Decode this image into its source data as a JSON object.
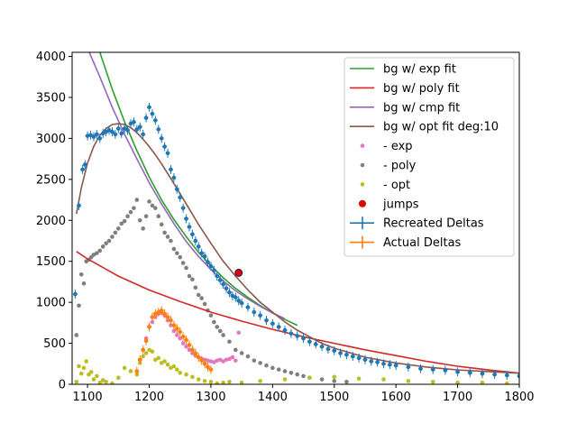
{
  "chart_data": {
    "type": "scatter",
    "title": "",
    "xlabel": "",
    "ylabel": "",
    "xlim": [
      1075,
      1800
    ],
    "ylim": [
      0,
      4050
    ],
    "x_ticks": [
      1100,
      1200,
      1300,
      1400,
      1500,
      1600,
      1700,
      1800
    ],
    "y_ticks": [
      0,
      500,
      1000,
      1500,
      2000,
      2500,
      3000,
      3500,
      4000
    ],
    "grid": false,
    "legend_position": "upper right",
    "colors": {
      "exp_fit": "#2ca02c",
      "poly_fit": "#d62728",
      "cmp_fit": "#9467bd",
      "opt_fit": "#8c564b",
      "exp_resid": "#e377c2",
      "poly_resid": "#7f7f7f",
      "opt_resid": "#bcbd22",
      "jumps": "#e00000",
      "recreated": "#1f77b4",
      "actual": "#ff7f0e"
    },
    "legend": [
      {
        "label": "bg w/ exp fit",
        "kind": "line",
        "key": "exp_fit"
      },
      {
        "label": "bg w/ poly fit",
        "kind": "line",
        "key": "poly_fit"
      },
      {
        "label": "bg w/ cmp fit",
        "kind": "line",
        "key": "cmp_fit"
      },
      {
        "label": "bg w/ opt fit deg:10",
        "kind": "line",
        "key": "opt_fit"
      },
      {
        "label": "- exp",
        "kind": "dot",
        "key": "exp_resid"
      },
      {
        "label": "- poly",
        "kind": "dot",
        "key": "poly_resid"
      },
      {
        "label": "- opt",
        "kind": "dot",
        "key": "opt_resid"
      },
      {
        "label": "jumps",
        "kind": "bigdot",
        "key": "jumps"
      },
      {
        "label": "Recreated Deltas",
        "kind": "errbar",
        "key": "recreated"
      },
      {
        "label": "Actual Deltas",
        "kind": "errbar",
        "key": "actual"
      }
    ],
    "series": [
      {
        "name": "bg w/ exp fit",
        "kind": "line",
        "key": "exp_fit",
        "x": [
          1110,
          1120,
          1140,
          1160,
          1180,
          1200,
          1220,
          1240,
          1260,
          1280,
          1300,
          1320,
          1340,
          1360,
          1380,
          1400,
          1420,
          1440
        ],
        "y": [
          4300,
          4050,
          3600,
          3200,
          2850,
          2530,
          2250,
          2010,
          1800,
          1610,
          1450,
          1300,
          1170,
          1060,
          960,
          870,
          790,
          720
        ]
      },
      {
        "name": "bg w/ poly fit",
        "kind": "line",
        "key": "poly_fit",
        "x": [
          1082,
          1100,
          1150,
          1200,
          1250,
          1300,
          1350,
          1400,
          1450,
          1500,
          1550,
          1600,
          1650,
          1700,
          1750,
          1800
        ],
        "y": [
          1620,
          1530,
          1320,
          1150,
          1010,
          880,
          770,
          670,
          580,
          500,
          420,
          350,
          280,
          220,
          175,
          135
        ]
      },
      {
        "name": "bg w/ cmp fit",
        "kind": "line",
        "key": "cmp_fit",
        "x": [
          1100,
          1120,
          1140,
          1160,
          1180,
          1200,
          1220,
          1240,
          1260,
          1280,
          1300,
          1320,
          1340,
          1360,
          1380,
          1400,
          1420
        ],
        "y": [
          4100,
          3750,
          3380,
          3050,
          2750,
          2460,
          2200,
          1960,
          1740,
          1560,
          1400,
          1260,
          1140,
          1040,
          950,
          870,
          800
        ]
      },
      {
        "name": "bg w/ opt fit deg:10",
        "kind": "line",
        "key": "opt_fit",
        "x": [
          1082,
          1090,
          1100,
          1110,
          1120,
          1130,
          1140,
          1150,
          1160,
          1170,
          1180,
          1190,
          1200,
          1210,
          1220,
          1240,
          1260,
          1280,
          1300,
          1320,
          1340,
          1360,
          1380,
          1400,
          1420,
          1440,
          1460,
          1480,
          1500,
          1550,
          1600,
          1650,
          1700,
          1750,
          1800
        ],
        "y": [
          2080,
          2400,
          2700,
          2900,
          3040,
          3120,
          3170,
          3180,
          3170,
          3130,
          3070,
          2990,
          2900,
          2800,
          2690,
          2450,
          2200,
          1950,
          1720,
          1500,
          1320,
          1150,
          1000,
          880,
          760,
          660,
          580,
          500,
          440,
          330,
          260,
          210,
          175,
          155,
          135
        ]
      },
      {
        "name": "- exp",
        "kind": "dots",
        "key": "exp_resid",
        "x": [
          1185,
          1190,
          1195,
          1200,
          1205,
          1210,
          1215,
          1220,
          1225,
          1230,
          1235,
          1240,
          1245,
          1250,
          1255,
          1260,
          1265,
          1270,
          1275,
          1280,
          1285,
          1290,
          1295,
          1300,
          1305,
          1310,
          1315,
          1320,
          1325,
          1330,
          1335,
          1340,
          1345
        ],
        "y": [
          300,
          420,
          560,
          700,
          760,
          820,
          860,
          870,
          840,
          780,
          720,
          650,
          600,
          560,
          500,
          460,
          420,
          380,
          350,
          330,
          310,
          300,
          290,
          280,
          270,
          290,
          300,
          280,
          300,
          310,
          330,
          290,
          630
        ]
      },
      {
        "name": "- poly",
        "kind": "dots",
        "key": "poly_resid",
        "x": [
          1082,
          1086,
          1090,
          1094,
          1098,
          1102,
          1106,
          1110,
          1115,
          1120,
          1125,
          1130,
          1135,
          1140,
          1145,
          1150,
          1155,
          1160,
          1165,
          1170,
          1175,
          1180,
          1185,
          1190,
          1195,
          1200,
          1205,
          1210,
          1215,
          1220,
          1225,
          1230,
          1235,
          1240,
          1245,
          1250,
          1255,
          1260,
          1265,
          1270,
          1275,
          1280,
          1285,
          1290,
          1295,
          1300,
          1305,
          1310,
          1315,
          1320,
          1330,
          1340,
          1350,
          1360,
          1370,
          1380,
          1390,
          1400,
          1410,
          1420,
          1430,
          1440,
          1450,
          1460,
          1480,
          1500,
          1520
        ],
        "y": [
          600,
          960,
          1340,
          1230,
          1500,
          1520,
          1550,
          1580,
          1600,
          1630,
          1680,
          1720,
          1750,
          1800,
          1850,
          1900,
          1960,
          1990,
          2050,
          2100,
          2150,
          2250,
          2000,
          1900,
          2050,
          2230,
          2180,
          2150,
          2050,
          1950,
          1850,
          1800,
          1750,
          1650,
          1600,
          1550,
          1480,
          1420,
          1320,
          1280,
          1180,
          1090,
          1050,
          980,
          900,
          840,
          760,
          700,
          650,
          600,
          520,
          420,
          380,
          340,
          290,
          260,
          230,
          200,
          180,
          160,
          140,
          120,
          100,
          80,
          60,
          40,
          30
        ]
      },
      {
        "name": "- opt",
        "kind": "dots",
        "key": "opt_resid",
        "x": [
          1082,
          1086,
          1090,
          1094,
          1098,
          1102,
          1106,
          1110,
          1115,
          1120,
          1125,
          1130,
          1140,
          1150,
          1160,
          1170,
          1180,
          1185,
          1190,
          1195,
          1200,
          1205,
          1210,
          1215,
          1220,
          1225,
          1230,
          1235,
          1240,
          1245,
          1250,
          1260,
          1270,
          1280,
          1290,
          1300,
          1310,
          1320,
          1330,
          1350,
          1380,
          1420,
          1460,
          1500,
          1540,
          1580,
          1620,
          1660,
          1700,
          1740,
          1780
        ],
        "y": [
          30,
          220,
          130,
          200,
          280,
          120,
          150,
          60,
          100,
          20,
          50,
          30,
          10,
          80,
          200,
          160,
          120,
          260,
          340,
          380,
          420,
          400,
          300,
          320,
          260,
          280,
          240,
          200,
          220,
          180,
          140,
          120,
          90,
          60,
          40,
          30,
          10,
          20,
          30,
          20,
          40,
          60,
          80,
          90,
          70,
          60,
          40,
          30,
          20,
          20,
          10
        ]
      },
      {
        "name": "Actual Deltas",
        "kind": "errdots",
        "key": "actual",
        "x": [
          1180,
          1185,
          1190,
          1195,
          1200,
          1205,
          1210,
          1215,
          1220,
          1225,
          1230,
          1235,
          1240,
          1245,
          1250,
          1255,
          1260,
          1265,
          1270,
          1275,
          1280,
          1285,
          1290,
          1295,
          1300
        ],
        "y": [
          160,
          300,
          420,
          530,
          700,
          820,
          860,
          880,
          900,
          860,
          820,
          780,
          720,
          680,
          640,
          580,
          540,
          480,
          420,
          380,
          330,
          290,
          250,
          210,
          180
        ]
      },
      {
        "name": "Recreated Deltas",
        "kind": "errdots",
        "key": "recreated",
        "x": [
          1080,
          1086,
          1092,
          1096,
          1100,
          1105,
          1110,
          1115,
          1120,
          1125,
          1130,
          1135,
          1140,
          1145,
          1150,
          1155,
          1160,
          1165,
          1170,
          1175,
          1180,
          1185,
          1190,
          1195,
          1200,
          1205,
          1210,
          1215,
          1220,
          1225,
          1230,
          1235,
          1240,
          1245,
          1250,
          1255,
          1260,
          1265,
          1270,
          1275,
          1280,
          1285,
          1290,
          1295,
          1300,
          1305,
          1310,
          1315,
          1320,
          1325,
          1330,
          1335,
          1340,
          1345,
          1350,
          1360,
          1370,
          1380,
          1390,
          1400,
          1410,
          1420,
          1430,
          1440,
          1450,
          1460,
          1470,
          1480,
          1490,
          1500,
          1510,
          1520,
          1530,
          1540,
          1550,
          1560,
          1570,
          1580,
          1590,
          1600,
          1620,
          1640,
          1660,
          1680,
          1700,
          1720,
          1740,
          1760,
          1780,
          1800
        ],
        "y": [
          1100,
          2180,
          2620,
          2680,
          3030,
          3040,
          3020,
          3050,
          3000,
          3060,
          3080,
          3100,
          3080,
          3050,
          3120,
          3060,
          3120,
          3100,
          3180,
          3200,
          3110,
          3140,
          3050,
          3250,
          3380,
          3300,
          3220,
          3110,
          3000,
          2900,
          2820,
          2620,
          2520,
          2380,
          2280,
          2150,
          2020,
          1920,
          1830,
          1750,
          1680,
          1600,
          1560,
          1490,
          1440,
          1390,
          1320,
          1270,
          1220,
          1170,
          1120,
          1080,
          1060,
          1020,
          990,
          940,
          880,
          840,
          780,
          740,
          700,
          660,
          620,
          590,
          560,
          520,
          490,
          460,
          430,
          410,
          380,
          360,
          340,
          320,
          300,
          280,
          270,
          250,
          240,
          230,
          210,
          190,
          180,
          170,
          150,
          140,
          130,
          120,
          110,
          100
        ]
      },
      {
        "name": "jumps",
        "kind": "bigdots",
        "key": "jumps",
        "x": [
          1345
        ],
        "y": [
          1360
        ]
      }
    ]
  }
}
